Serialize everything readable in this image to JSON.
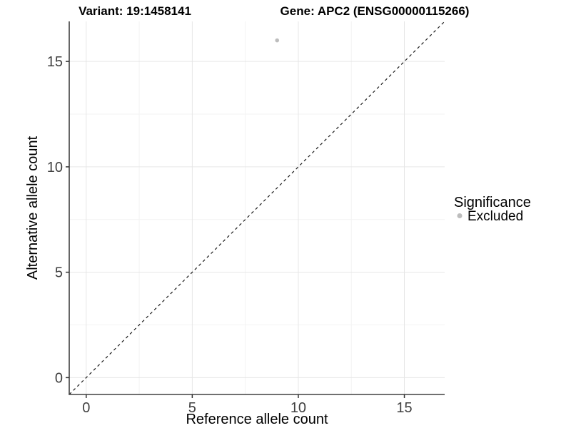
{
  "chart_data": {
    "type": "scatter",
    "titles": {
      "left": "Variant: 19:1458141",
      "right": "Gene: APC2 (ENSG00000115266)"
    },
    "xlabel": "Reference allele count",
    "ylabel": "Alternative allele count",
    "xlim": [
      -0.8,
      16.9
    ],
    "ylim": [
      -0.8,
      16.9
    ],
    "xticks": [
      0,
      5,
      10,
      15
    ],
    "yticks": [
      0,
      5,
      10,
      15
    ],
    "xminor": [
      2.5,
      7.5,
      12.5
    ],
    "yminor": [
      2.5,
      7.5,
      12.5
    ],
    "grid": "major and minor, light grey on white panel",
    "series": [
      {
        "name": "Excluded",
        "color": "#bdbdbd",
        "points": [
          {
            "x": 9,
            "y": 16
          }
        ]
      }
    ],
    "identity_line": {
      "slope": 1,
      "intercept": 0,
      "style": "dashed",
      "color": "#1a1a1a"
    },
    "legend": {
      "title": "Significance",
      "position": "right",
      "entries": [
        {
          "label": "Excluded",
          "color": "#bdbdbd"
        }
      ]
    }
  },
  "colors": {
    "background": "#ffffff",
    "grid_major": "#e6e6e6",
    "grid_minor": "#f3f3f3",
    "axis_line": "#404040",
    "tick_mark": "#333333",
    "tick_text": "#404040",
    "point": "#bdbdbd"
  }
}
